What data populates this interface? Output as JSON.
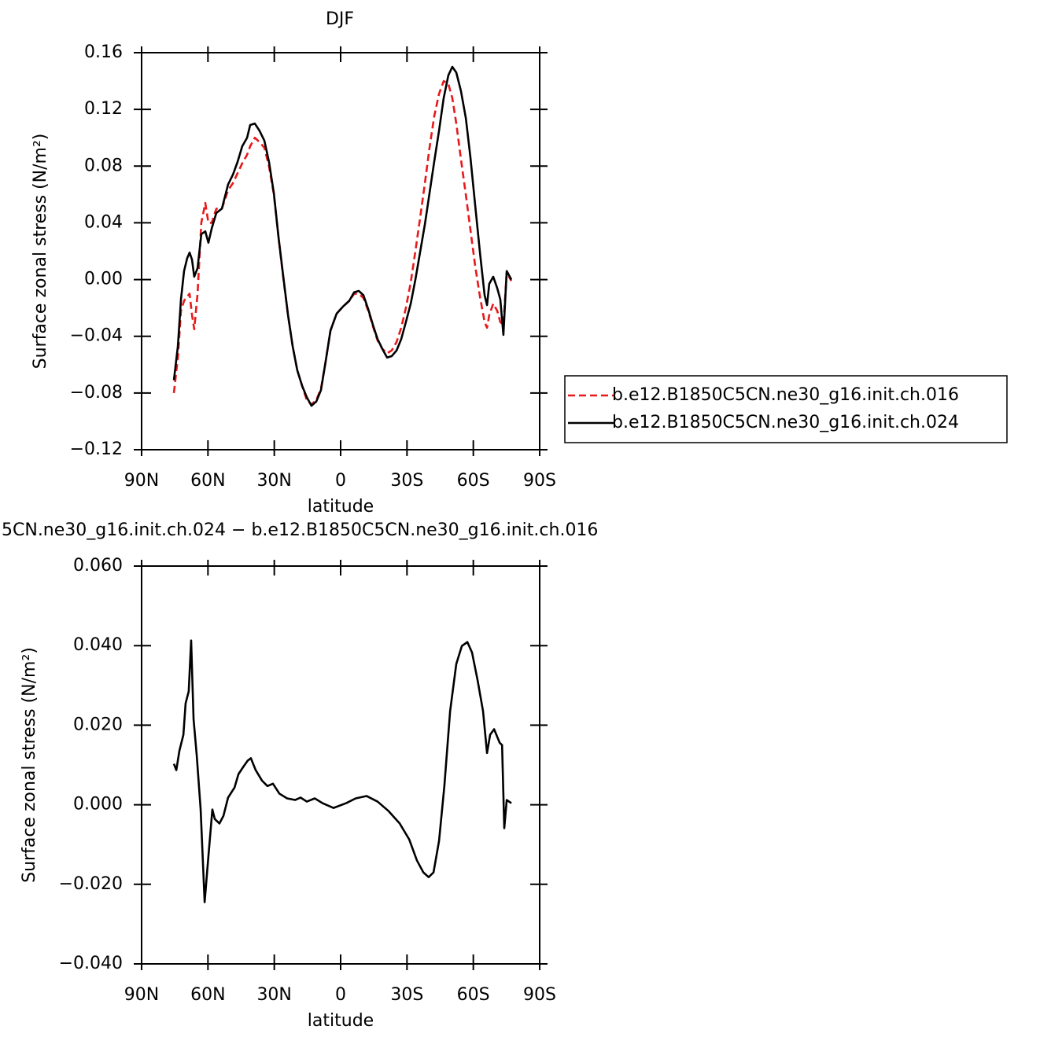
{
  "chart_data": [
    {
      "type": "line",
      "title": "DJF",
      "x_label": "latitude",
      "y_label": "Surface zonal stress (N/m²)",
      "xlim": [
        90,
        -90
      ],
      "ylim": [
        -0.12,
        0.16
      ],
      "xticks": [
        {
          "value": 90,
          "label": "90N"
        },
        {
          "value": 60,
          "label": "60N"
        },
        {
          "value": 30,
          "label": "30N"
        },
        0,
        {
          "value": -30,
          "label": "30S"
        },
        {
          "value": -60,
          "label": "60S"
        },
        {
          "value": -90,
          "label": "90S"
        }
      ],
      "yticks": [
        {
          "value": 0.16,
          "label": "0.16"
        },
        {
          "value": 0.12,
          "label": "0.12"
        },
        {
          "value": 0.08,
          "label": "0.08"
        },
        {
          "value": 0.04,
          "label": "0.04"
        },
        {
          "value": 0,
          "label": "0.00"
        },
        {
          "value": -0.04,
          "label": "−0.04"
        },
        {
          "value": -0.08,
          "label": "−0.08"
        },
        {
          "value": -0.12,
          "label": "−0.12"
        }
      ],
      "legend": "right",
      "x": [
        75.4,
        73.6,
        72.2,
        70.8,
        69.4,
        68.3,
        67.2,
        66.2,
        64.7,
        63.0,
        61.2,
        59.8,
        58.3,
        56.2,
        53.7,
        50.9,
        48.7,
        46.6,
        44.5,
        42.3,
        40.9,
        38.8,
        36.7,
        34.5,
        32.4,
        30.2,
        28.1,
        26.0,
        23.8,
        21.7,
        19.6,
        17.4,
        15.3,
        13.2,
        11.0,
        8.9,
        6.8,
        4.6,
        1.8,
        -1.1,
        -3.9,
        -6.1,
        -8.2,
        -10.3,
        -12.5,
        -14.6,
        -16.7,
        -18.9,
        -21.0,
        -23.1,
        -25.3,
        -27.4,
        -29.5,
        -31.7,
        -33.8,
        -35.9,
        -38.1,
        -40.2,
        -42.3,
        -44.5,
        -46.6,
        -48.7,
        -50.5,
        -52.3,
        -54.4,
        -56.6,
        -58.7,
        -60.8,
        -63.0,
        -65.1,
        -66.2,
        -67.2,
        -69.0,
        -70.8,
        -72.2,
        -73.6,
        -75.1,
        -77.2
      ],
      "series": [
        {
          "name": "b.e12.B1850C5CN.ne30_g16.init.ch.016",
          "color": "#e8191b",
          "line_style": "dashed",
          "values": [
            -0.08,
            -0.055,
            -0.022,
            -0.015,
            -0.012,
            -0.01,
            -0.025,
            -0.035,
            -0.01,
            0.04,
            0.054,
            0.04,
            0.04,
            0.05,
            0.05,
            0.063,
            0.068,
            0.075,
            0.082,
            0.088,
            0.094,
            0.1,
            0.097,
            0.093,
            0.08,
            0.06,
            0.03,
            0.002,
            -0.025,
            -0.047,
            -0.064,
            -0.075,
            -0.085,
            -0.088,
            -0.085,
            -0.077,
            -0.058,
            -0.036,
            -0.024,
            -0.019,
            -0.015,
            -0.01,
            -0.01,
            -0.013,
            -0.022,
            -0.033,
            -0.043,
            -0.049,
            -0.052,
            -0.05,
            -0.044,
            -0.034,
            -0.02,
            -0.002,
            0.02,
            0.043,
            0.068,
            0.093,
            0.115,
            0.131,
            0.14,
            0.138,
            0.128,
            0.11,
            0.085,
            0.06,
            0.035,
            0.01,
            -0.012,
            -0.03,
            -0.034,
            -0.025,
            -0.017,
            -0.022,
            -0.03,
            -0.032,
            0.005,
            -0.001
          ]
        },
        {
          "name": "b.e12.B1850C5CN.ne30_g16.init.ch.024",
          "color": "#000000",
          "line_style": "solid",
          "values": [
            -0.071,
            -0.047,
            -0.014,
            0.006,
            0.015,
            0.019,
            0.014,
            0.002,
            0.008,
            0.032,
            0.034,
            0.026,
            0.036,
            0.047,
            0.05,
            0.067,
            0.074,
            0.083,
            0.094,
            0.1,
            0.109,
            0.11,
            0.105,
            0.098,
            0.083,
            0.061,
            0.03,
            0.003,
            -0.025,
            -0.047,
            -0.064,
            -0.075,
            -0.083,
            -0.089,
            -0.086,
            -0.078,
            -0.058,
            -0.036,
            -0.024,
            -0.019,
            -0.015,
            -0.009,
            -0.008,
            -0.011,
            -0.021,
            -0.032,
            -0.042,
            -0.049,
            -0.055,
            -0.054,
            -0.05,
            -0.042,
            -0.03,
            -0.017,
            0.0,
            0.019,
            0.039,
            0.061,
            0.083,
            0.105,
            0.128,
            0.144,
            0.15,
            0.146,
            0.133,
            0.114,
            0.086,
            0.053,
            0.019,
            -0.011,
            -0.018,
            -0.003,
            0.002,
            -0.006,
            -0.014,
            -0.039,
            0.006,
            0.0
          ]
        }
      ]
    },
    {
      "type": "line",
      "title": "5CN.ne30_g16.init.ch.024 − b.e12.B1850C5CN.ne30_g16.init.ch.016",
      "x_label": "latitude",
      "y_label": "Surface zonal stress (N/m²)",
      "xlim": [
        90,
        -90
      ],
      "ylim": [
        -0.04,
        0.06
      ],
      "xticks": [
        {
          "value": 90,
          "label": "90N"
        },
        {
          "value": 60,
          "label": "60N"
        },
        {
          "value": 30,
          "label": "30N"
        },
        0,
        {
          "value": -30,
          "label": "30S"
        },
        {
          "value": -60,
          "label": "60S"
        },
        {
          "value": -90,
          "label": "90S"
        }
      ],
      "yticks": [
        {
          "value": 0.06,
          "label": "0.060"
        },
        {
          "value": 0.04,
          "label": "0.040"
        },
        {
          "value": 0.02,
          "label": "0.020"
        },
        {
          "value": 0,
          "label": "0.000"
        },
        {
          "value": -0.02,
          "label": "−0.020"
        },
        {
          "value": -0.04,
          "label": "−0.040"
        }
      ],
      "x": [
        75.4,
        74.3,
        72.9,
        71.1,
        70.1,
        68.7,
        67.6,
        66.5,
        65.1,
        63.3,
        61.5,
        59.8,
        58.0,
        56.9,
        54.8,
        53.0,
        50.9,
        48.0,
        46.2,
        43.8,
        42.0,
        40.6,
        38.4,
        35.6,
        33.1,
        30.6,
        27.7,
        24.2,
        20.6,
        18.1,
        15.3,
        11.7,
        8.2,
        3.2,
        -2.5,
        -6.8,
        -11.7,
        -16.7,
        -21.7,
        -26.7,
        -31.0,
        -34.5,
        -37.4,
        -39.8,
        -42.0,
        -44.5,
        -46.9,
        -49.5,
        -52.3,
        -54.8,
        -57.3,
        -59.4,
        -61.9,
        -64.4,
        -66.2,
        -67.6,
        -69.4,
        -71.9,
        -73.0,
        -74.0,
        -75.1,
        -77.2
      ],
      "series": [
        {
          "color": "#000000",
          "line_style": "solid",
          "values": [
            0.0103,
            0.0087,
            0.0136,
            0.0176,
            0.0255,
            0.0285,
            0.0413,
            0.0215,
            0.0126,
            -0.0012,
            -0.0245,
            -0.013,
            -0.0012,
            -0.0036,
            -0.0047,
            -0.0028,
            0.0018,
            0.0043,
            0.0077,
            0.0097,
            0.0111,
            0.0117,
            0.0087,
            0.0061,
            0.0047,
            0.0053,
            0.0028,
            0.0016,
            0.0012,
            0.0018,
            0.0008,
            0.0016,
            0.0004,
            -0.0008,
            0.0004,
            0.0016,
            0.0022,
            0.0008,
            -0.0016,
            -0.0047,
            -0.0087,
            -0.014,
            -0.017,
            -0.0182,
            -0.017,
            -0.0091,
            0.0047,
            0.0235,
            0.0354,
            0.0399,
            0.0409,
            0.0383,
            0.0314,
            0.0235,
            0.013,
            0.0176,
            0.019,
            0.0156,
            0.015,
            -0.0059,
            0.0012,
            0.0004
          ]
        }
      ]
    }
  ]
}
